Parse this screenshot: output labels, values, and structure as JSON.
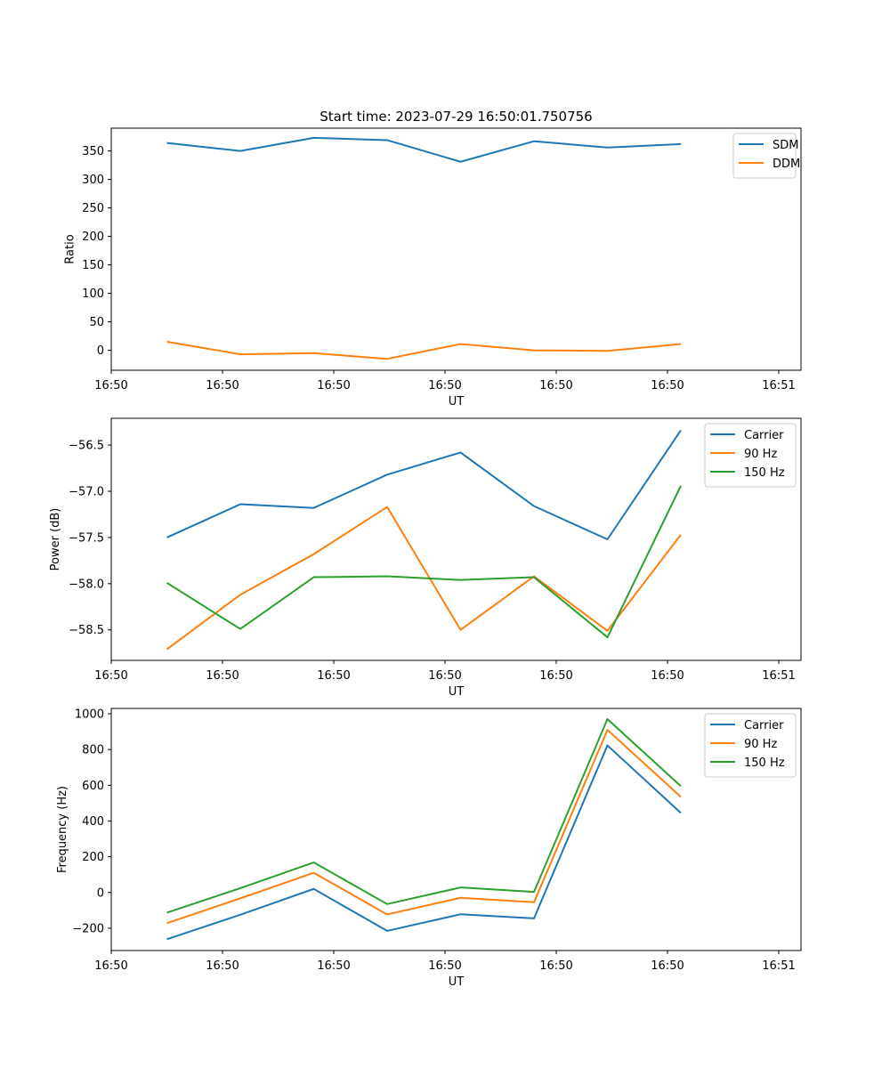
{
  "figure_title": "Start time: 2023-07-29 16:50:01.750756",
  "colors": {
    "blue": "#1f77b4",
    "orange": "#ff7f0e",
    "green": "#2ca02c"
  },
  "chart_data": [
    {
      "type": "line",
      "id": "ratio",
      "title": "Start time: 2023-07-29 16:50:01.750756",
      "xlabel": "UT",
      "ylabel": "Ratio",
      "xlim": [
        0,
        9.3
      ],
      "ylim": [
        -35,
        390
      ],
      "yticks": [
        0,
        50,
        100,
        150,
        200,
        250,
        300,
        350
      ],
      "xticks": [
        0,
        1.5,
        3,
        4.5,
        6,
        7.5,
        9
      ],
      "xtick_labels": [
        "16:50",
        "16:50",
        "16:50",
        "16:50",
        "16:50",
        "16:50",
        "16:51"
      ],
      "legend_position": "top-right",
      "x": [
        0.75,
        1.74,
        2.73,
        3.72,
        4.71,
        5.7,
        6.69,
        7.68
      ],
      "series": [
        {
          "name": "SDM",
          "color": "#1f77b4",
          "values": [
            364,
            350,
            373,
            369,
            331,
            367,
            356,
            362
          ]
        },
        {
          "name": "DDM",
          "color": "#ff7f0e",
          "values": [
            15,
            -7,
            -5,
            -15,
            11,
            0,
            -1,
            11
          ]
        }
      ]
    },
    {
      "type": "line",
      "id": "power",
      "title": "",
      "xlabel": "UT",
      "ylabel": "Power (dB)",
      "xlim": [
        0,
        9.3
      ],
      "ylim": [
        -58.83,
        -56.21
      ],
      "yticks": [
        -58.5,
        -58.0,
        -57.5,
        -57.0,
        -56.5
      ],
      "ytick_labels": [
        "−58.5",
        "−58.0",
        "−57.5",
        "−57.0",
        "−56.5"
      ],
      "xticks": [
        0,
        1.5,
        3,
        4.5,
        6,
        7.5,
        9
      ],
      "xtick_labels": [
        "16:50",
        "16:50",
        "16:50",
        "16:50",
        "16:50",
        "16:50",
        "16:51"
      ],
      "legend_position": "top-right",
      "x": [
        0.75,
        1.74,
        2.73,
        3.72,
        4.71,
        5.7,
        6.69,
        7.68
      ],
      "series": [
        {
          "name": "Carrier",
          "color": "#1f77b4",
          "values": [
            -57.5,
            -57.14,
            -57.18,
            -56.82,
            -56.58,
            -57.16,
            -57.52,
            -56.34
          ]
        },
        {
          "name": "90 Hz",
          "color": "#ff7f0e",
          "values": [
            -58.71,
            -58.12,
            -57.68,
            -57.17,
            -58.5,
            -57.92,
            -58.51,
            -57.47
          ]
        },
        {
          "name": "150 Hz",
          "color": "#2ca02c",
          "values": [
            -57.99,
            -58.49,
            -57.93,
            -57.92,
            -57.96,
            -57.93,
            -58.58,
            -56.94
          ]
        }
      ]
    },
    {
      "type": "line",
      "id": "frequency",
      "title": "",
      "xlabel": "UT",
      "ylabel": "Frequency (Hz)",
      "xlim": [
        0,
        9.3
      ],
      "ylim": [
        -325,
        1030
      ],
      "yticks": [
        -200,
        0,
        200,
        400,
        600,
        800,
        1000
      ],
      "ytick_labels": [
        "−200",
        "0",
        "200",
        "400",
        "600",
        "800",
        "1000"
      ],
      "xticks": [
        0,
        1.5,
        3,
        4.5,
        6,
        7.5,
        9
      ],
      "xtick_labels": [
        "16:50",
        "16:50",
        "16:50",
        "16:50",
        "16:50",
        "16:50",
        "16:51"
      ],
      "legend_position": "top-right",
      "x": [
        0.75,
        1.74,
        2.73,
        3.72,
        4.71,
        5.7,
        6.69,
        7.68
      ],
      "series": [
        {
          "name": "Carrier",
          "color": "#1f77b4",
          "values": [
            -262,
            -125,
            20,
            -215,
            -122,
            -145,
            823,
            445
          ]
        },
        {
          "name": "90 Hz",
          "color": "#ff7f0e",
          "values": [
            -172,
            -33,
            110,
            -123,
            -30,
            -55,
            910,
            535
          ]
        },
        {
          "name": "150 Hz",
          "color": "#2ca02c",
          "values": [
            -113,
            24,
            168,
            -65,
            28,
            3,
            970,
            595
          ]
        }
      ]
    }
  ]
}
